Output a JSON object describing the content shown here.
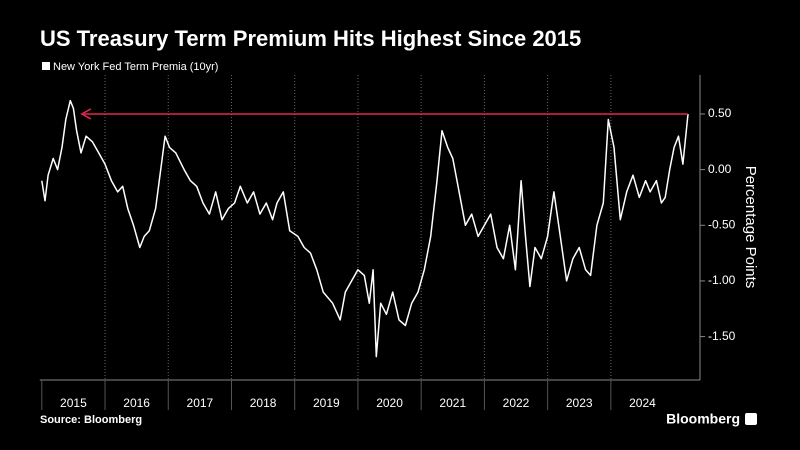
{
  "chart_data": {
    "type": "line",
    "title": "US Treasury Term Premium Hits Highest Since 2015",
    "y_label": "Percentage Points",
    "source": "Source: Bloomberg",
    "brand": "Bloomberg",
    "series": [
      {
        "name": "New York Fed Term Premia (10yr)",
        "color": "#ffffff",
        "x": [
          2015.0,
          2015.05,
          2015.1,
          2015.18,
          2015.25,
          2015.32,
          2015.38,
          2015.45,
          2015.5,
          2015.55,
          2015.62,
          2015.7,
          2015.8,
          2015.9,
          2016.0,
          2016.1,
          2016.2,
          2016.28,
          2016.36,
          2016.45,
          2016.55,
          2016.62,
          2016.7,
          2016.8,
          2016.95,
          2017.02,
          2017.12,
          2017.25,
          2017.35,
          2017.45,
          2017.55,
          2017.65,
          2017.75,
          2017.85,
          2017.95,
          2018.05,
          2018.14,
          2018.25,
          2018.35,
          2018.45,
          2018.55,
          2018.65,
          2018.72,
          2018.82,
          2018.92,
          2019.05,
          2019.15,
          2019.25,
          2019.35,
          2019.45,
          2019.6,
          2019.72,
          2019.8,
          2019.9,
          2020.0,
          2020.1,
          2020.18,
          2020.24,
          2020.29,
          2020.36,
          2020.45,
          2020.55,
          2020.65,
          2020.75,
          2020.85,
          2020.95,
          2021.05,
          2021.15,
          2021.25,
          2021.33,
          2021.42,
          2021.5,
          2021.6,
          2021.7,
          2021.8,
          2021.9,
          2022.0,
          2022.1,
          2022.2,
          2022.3,
          2022.4,
          2022.49,
          2022.58,
          2022.65,
          2022.72,
          2022.8,
          2022.9,
          2023.0,
          2023.1,
          2023.2,
          2023.3,
          2023.4,
          2023.5,
          2023.6,
          2023.68,
          2023.78,
          2023.88,
          2023.96,
          2024.05,
          2024.15,
          2024.25,
          2024.35,
          2024.45,
          2024.55,
          2024.62,
          2024.72,
          2024.8,
          2024.86,
          2024.93,
          2025.0,
          2025.07,
          2025.14,
          2025.22
        ],
        "values": [
          -0.1,
          -0.28,
          -0.05,
          0.1,
          0.0,
          0.2,
          0.45,
          0.62,
          0.55,
          0.35,
          0.15,
          0.3,
          0.25,
          0.15,
          0.05,
          -0.1,
          -0.2,
          -0.15,
          -0.35,
          -0.5,
          -0.7,
          -0.6,
          -0.55,
          -0.35,
          0.3,
          0.2,
          0.15,
          0.0,
          -0.1,
          -0.15,
          -0.3,
          -0.4,
          -0.2,
          -0.45,
          -0.35,
          -0.3,
          -0.15,
          -0.3,
          -0.2,
          -0.4,
          -0.3,
          -0.45,
          -0.3,
          -0.2,
          -0.55,
          -0.6,
          -0.7,
          -0.75,
          -0.9,
          -1.1,
          -1.2,
          -1.35,
          -1.1,
          -1.0,
          -0.9,
          -0.95,
          -1.2,
          -0.9,
          -1.68,
          -1.2,
          -1.3,
          -1.1,
          -1.35,
          -1.4,
          -1.2,
          -1.1,
          -0.9,
          -0.6,
          -0.1,
          0.35,
          0.2,
          0.1,
          -0.2,
          -0.5,
          -0.4,
          -0.6,
          -0.5,
          -0.4,
          -0.7,
          -0.8,
          -0.5,
          -0.9,
          -0.1,
          -0.6,
          -1.05,
          -0.7,
          -0.8,
          -0.6,
          -0.2,
          -0.6,
          -1.0,
          -0.8,
          -0.7,
          -0.9,
          -0.95,
          -0.5,
          -0.3,
          0.45,
          0.2,
          -0.45,
          -0.2,
          -0.05,
          -0.25,
          -0.1,
          -0.2,
          -0.1,
          -0.3,
          -0.25,
          0.0,
          0.2,
          0.3,
          0.05,
          0.5
        ]
      }
    ],
    "xlim": [
      2015,
      2025.41
    ],
    "xticks": [
      {
        "value": 2015,
        "label": "2015"
      },
      {
        "value": 2016,
        "label": "2016"
      },
      {
        "value": 2017,
        "label": "2017"
      },
      {
        "value": 2018,
        "label": "2018"
      },
      {
        "value": 2019,
        "label": "2019"
      },
      {
        "value": 2020,
        "label": "2020"
      },
      {
        "value": 2021,
        "label": "2021"
      },
      {
        "value": 2022,
        "label": "2022"
      },
      {
        "value": 2023,
        "label": "2023"
      },
      {
        "value": 2024,
        "label": "2024"
      }
    ],
    "ylim": [
      -1.89,
      0.85
    ],
    "yticks": [
      {
        "value": 0.5,
        "label": "0.50"
      },
      {
        "value": 0,
        "label": "0.00"
      },
      {
        "value": -0.5,
        "label": "-0.50"
      },
      {
        "value": -1,
        "label": "-1.00"
      },
      {
        "value": -1.5,
        "label": "-1.50"
      }
    ],
    "grid": true,
    "reference_line": {
      "value": 0.5,
      "color": "#e0284e"
    }
  }
}
